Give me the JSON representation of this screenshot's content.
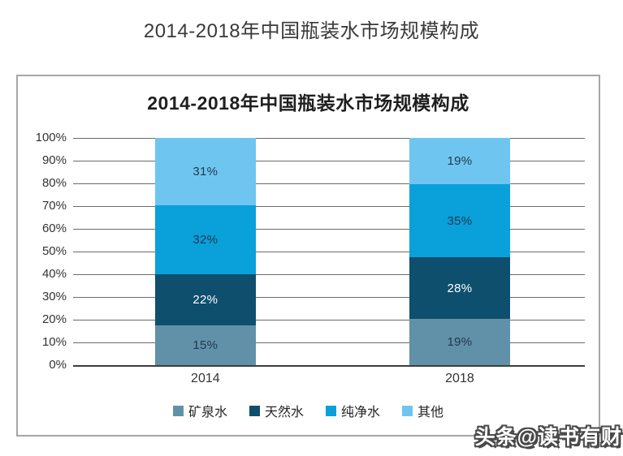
{
  "page": {
    "title": "2014-2018年中国瓶装水市场规模构成"
  },
  "watermark": {
    "text": "头条@读书有财"
  },
  "chart_data": {
    "type": "bar",
    "stacked": true,
    "title": "2014-2018年中国瓶装水市场规模构成",
    "categories": [
      "2014",
      "2018"
    ],
    "series": [
      {
        "name": "矿泉水",
        "values": [
          15,
          19
        ],
        "color": "#6191a8",
        "label_color": "#21394e"
      },
      {
        "name": "天然水",
        "values": [
          22,
          28
        ],
        "color": "#0e4f6e",
        "label_color": "#ffffff"
      },
      {
        "name": "纯净水",
        "values": [
          32,
          35
        ],
        "color": "#0aa0da",
        "label_color": "#21394e"
      },
      {
        "name": "其他",
        "values": [
          31,
          19
        ],
        "color": "#6ec6f0",
        "label_color": "#21394e"
      }
    ],
    "value_suffix": "%",
    "xlabel": "",
    "ylabel": "",
    "ylim": [
      0,
      100
    ],
    "y_tick_step": 10,
    "y_tick_labels": [
      "100%",
      "90%",
      "80%",
      "70%",
      "60%",
      "50%",
      "40%",
      "30%",
      "20%",
      "10%",
      "0%"
    ],
    "grid": true,
    "gridline_color": "#6b6b6b",
    "legend_position": "bottom",
    "bar_left_pct": [
      16.0,
      65.7
    ],
    "bar_width_pct": 19.7
  }
}
